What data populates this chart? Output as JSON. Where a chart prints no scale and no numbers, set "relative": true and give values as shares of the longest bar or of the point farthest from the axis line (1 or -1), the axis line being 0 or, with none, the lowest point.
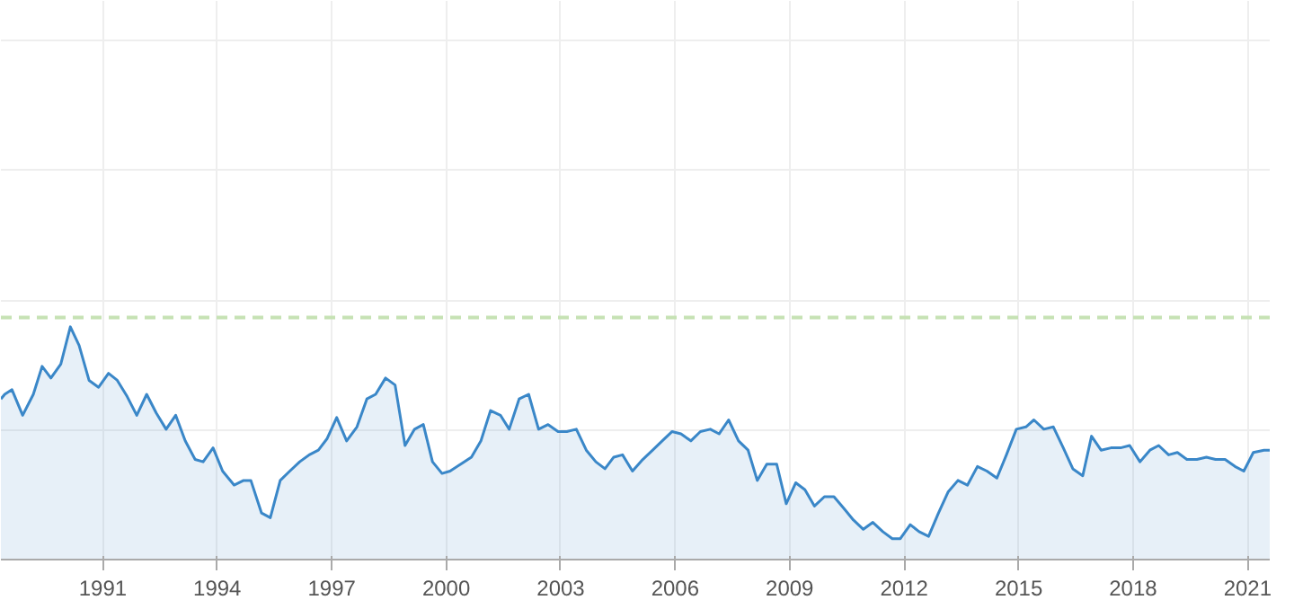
{
  "chart_data": {
    "type": "area",
    "relative": true,
    "color": "#3a87c8",
    "x": [
      1988.33,
      1988.43,
      1988.62,
      1988.9,
      1989.18,
      1989.41,
      1989.64,
      1989.9,
      1990.15,
      1990.38,
      1990.64,
      1990.89,
      1991.15,
      1991.38,
      1991.64,
      1991.89,
      1992.15,
      1992.4,
      1992.66,
      1992.91,
      1993.16,
      1993.42,
      1993.63,
      1993.89,
      1994.14,
      1994.44,
      1994.69,
      1994.88,
      1995.16,
      1995.39,
      1995.65,
      1995.9,
      1996.16,
      1996.41,
      1996.65,
      1996.88,
      1997.13,
      1997.39,
      1997.66,
      1997.92,
      1998.15,
      1998.41,
      1998.66,
      1998.92,
      1999.17,
      1999.4,
      1999.64,
      1999.89,
      2000.1,
      2000.38,
      2000.66,
      2000.91,
      2001.16,
      2001.42,
      2001.65,
      2001.91,
      2002.16,
      2002.42,
      2002.67,
      2002.93,
      2003.16,
      2003.41,
      2003.67,
      2003.92,
      2004.16,
      2004.39,
      2004.62,
      2004.88,
      2005.15,
      2005.41,
      2005.66,
      2005.92,
      2006.15,
      2006.41,
      2006.66,
      2006.92,
      2007.15,
      2007.4,
      2007.66,
      2007.91,
      2008.15,
      2008.4,
      2008.66,
      2008.91,
      2009.16,
      2009.4,
      2009.65,
      2009.91,
      2010.16,
      2010.42,
      2010.67,
      2010.93,
      2011.18,
      2011.44,
      2011.69,
      2011.9,
      2012.16,
      2012.39,
      2012.64,
      2012.9,
      2013.15,
      2013.41,
      2013.66,
      2013.92,
      2014.17,
      2014.43,
      2014.68,
      2014.94,
      2015.19,
      2015.4,
      2015.66,
      2015.91,
      2016.17,
      2016.42,
      2016.68,
      2016.91,
      2017.16,
      2017.42,
      2017.67,
      2017.91,
      2018.18,
      2018.44,
      2018.67,
      2018.93,
      2019.16,
      2019.41,
      2019.67,
      2019.92,
      2020.16,
      2020.41,
      2020.67,
      2020.9,
      2021.15,
      2021.43,
      2021.58
    ],
    "values": [
      0.69,
      0.71,
      0.73,
      0.62,
      0.71,
      0.83,
      0.78,
      0.84,
      1.0,
      0.92,
      0.77,
      0.74,
      0.8,
      0.77,
      0.7,
      0.62,
      0.71,
      0.63,
      0.56,
      0.62,
      0.51,
      0.43,
      0.42,
      0.48,
      0.38,
      0.32,
      0.34,
      0.34,
      0.2,
      0.18,
      0.34,
      0.38,
      0.42,
      0.45,
      0.47,
      0.52,
      0.61,
      0.51,
      0.57,
      0.69,
      0.71,
      0.78,
      0.75,
      0.49,
      0.56,
      0.58,
      0.42,
      0.37,
      0.38,
      0.41,
      0.44,
      0.51,
      0.64,
      0.62,
      0.56,
      0.69,
      0.71,
      0.56,
      0.58,
      0.55,
      0.55,
      0.56,
      0.47,
      0.42,
      0.39,
      0.44,
      0.45,
      0.38,
      0.43,
      0.47,
      0.51,
      0.55,
      0.54,
      0.51,
      0.55,
      0.56,
      0.54,
      0.6,
      0.51,
      0.47,
      0.34,
      0.41,
      0.41,
      0.24,
      0.33,
      0.3,
      0.23,
      0.27,
      0.27,
      0.22,
      0.17,
      0.13,
      0.16,
      0.12,
      0.09,
      0.09,
      0.15,
      0.12,
      0.1,
      0.2,
      0.29,
      0.34,
      0.32,
      0.4,
      0.38,
      0.35,
      0.45,
      0.56,
      0.57,
      0.6,
      0.56,
      0.57,
      0.48,
      0.39,
      0.36,
      0.53,
      0.47,
      0.48,
      0.48,
      0.49,
      0.42,
      0.47,
      0.49,
      0.45,
      0.46,
      0.43,
      0.43,
      0.44,
      0.43,
      0.43,
      0.4,
      0.38,
      0.46,
      0.47,
      0.47
    ],
    "xlim": [
      1988.33,
      2021.58
    ],
    "xticks": [
      1991,
      1994,
      1997,
      2000,
      2003,
      2006,
      2009,
      2012,
      2015,
      2018,
      2021
    ],
    "ref_lines": [
      {
        "axis": "y",
        "value": 1.04,
        "color": "#c6e2b4",
        "line_style": "dashed"
      }
    ],
    "grid": true
  }
}
